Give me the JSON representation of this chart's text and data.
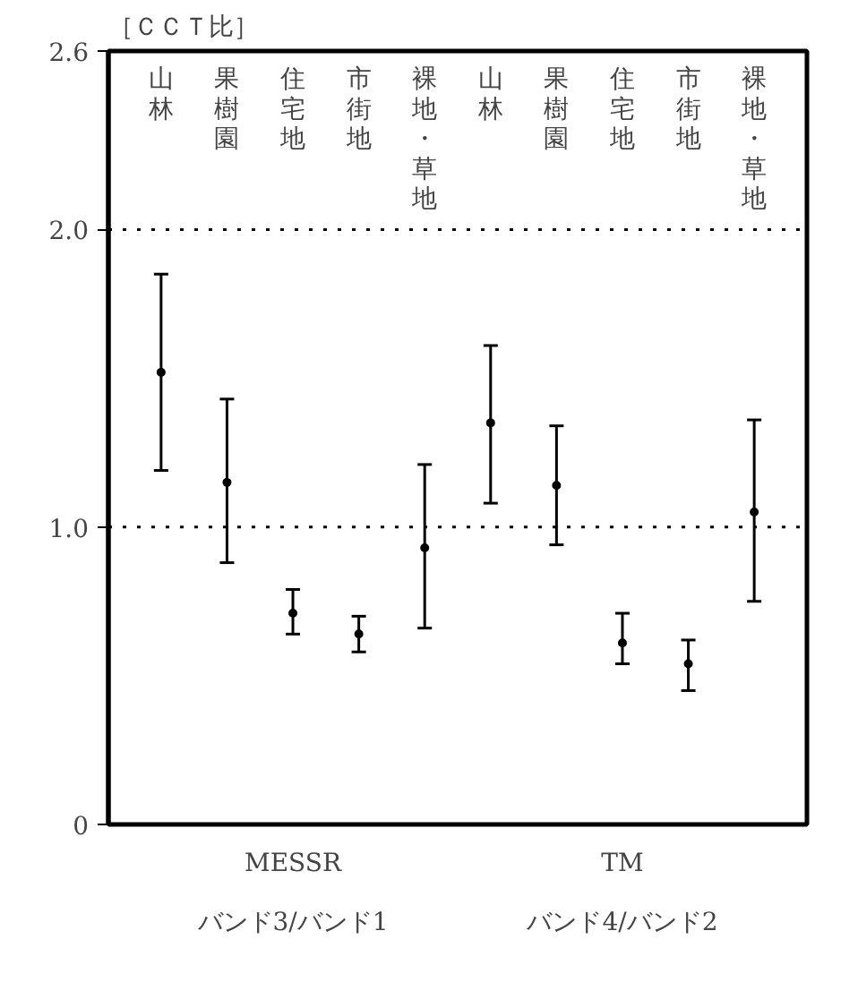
{
  "chart_data": {
    "type": "scatter",
    "title": "［ＣＣＴ比］",
    "categories": [
      "山林",
      "果樹園",
      "住宅地",
      "市街地",
      "裸地・草地",
      "山林",
      "果樹園",
      "住宅地",
      "市街地",
      "裸地・草地"
    ],
    "series": [
      {
        "color": "#000000",
        "values": [
          1.52,
          1.15,
          0.71,
          0.64,
          0.93,
          1.35,
          1.14,
          0.61,
          0.54,
          1.05
        ],
        "errors": [
          [
            1.19,
            1.85
          ],
          [
            0.88,
            1.43
          ],
          [
            0.64,
            0.79
          ],
          [
            0.58,
            0.7
          ],
          [
            0.66,
            1.21
          ],
          [
            1.08,
            1.61
          ],
          [
            0.94,
            1.34
          ],
          [
            0.54,
            0.71
          ],
          [
            0.45,
            0.62
          ],
          [
            0.75,
            1.36
          ]
        ]
      }
    ],
    "ylim": [
      0,
      2.6
    ],
    "yticks": [
      0,
      {
        "value": 1,
        "label": "1.0"
      },
      {
        "value": 2,
        "label": "2.0"
      },
      2.6
    ],
    "ref_lines": [
      {
        "axis": "y",
        "value": 1,
        "color": "#000000",
        "line_style": "dotted"
      },
      {
        "axis": "y",
        "value": 2,
        "color": "#000000",
        "line_style": "dotted"
      }
    ],
    "annotations": [
      "MESSR",
      "バンド3/バンド1",
      "TM",
      "バンド4/バンド2"
    ],
    "marker": "circle",
    "grid": false
  }
}
